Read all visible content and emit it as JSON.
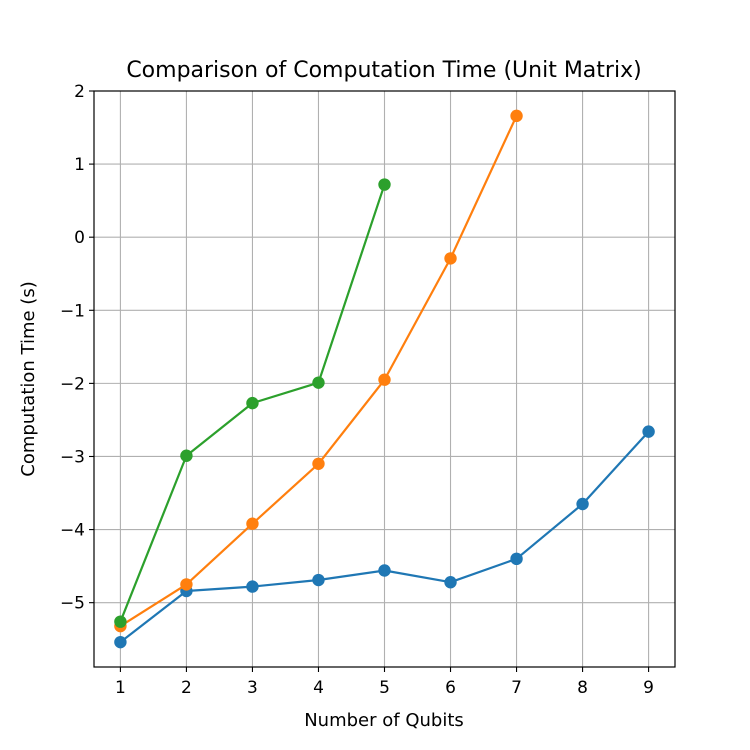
{
  "chart_data": {
    "type": "line",
    "title": "Comparison of Computation Time (Unit Matrix)",
    "xlabel": "Number of Qubits",
    "ylabel": "Computation Time (s)",
    "xlim": [
      0.6,
      9.4
    ],
    "ylim": [
      -5.88,
      2.0
    ],
    "x_ticks": [
      1,
      2,
      3,
      4,
      5,
      6,
      7,
      8,
      9
    ],
    "y_ticks": [
      -5,
      -4,
      -3,
      -2,
      -1,
      0,
      1,
      2
    ],
    "grid": true,
    "legend": false,
    "series": [
      {
        "color": "#1f77b4",
        "x": [
          1,
          2,
          3,
          4,
          5,
          6,
          7,
          8,
          9
        ],
        "values": [
          -5.54,
          -4.84,
          -4.78,
          -4.69,
          -4.56,
          -4.72,
          -4.4,
          -3.65,
          -2.66
        ]
      },
      {
        "color": "#ff7f0e",
        "x": [
          1,
          2,
          3,
          4,
          5,
          6,
          7
        ],
        "values": [
          -5.32,
          -4.75,
          -3.92,
          -3.1,
          -1.95,
          -0.29,
          1.66
        ]
      },
      {
        "color": "#2ca02c",
        "x": [
          1,
          2,
          3,
          4,
          5
        ],
        "values": [
          -5.26,
          -2.99,
          -2.27,
          -1.99,
          0.72
        ]
      }
    ]
  }
}
